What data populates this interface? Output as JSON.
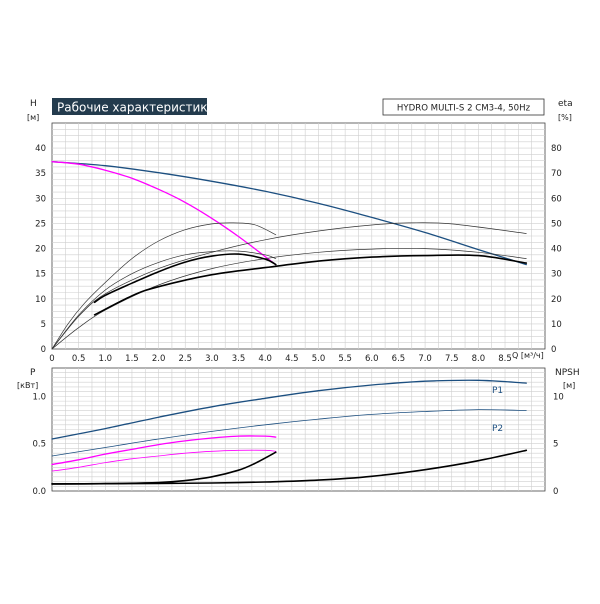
{
  "header": {
    "title": "Рабочие характеристики",
    "model": "HYDRO MULTI-S 2 CM3-4, 50Hz",
    "title_bg": "#233b4d"
  },
  "chart_data": [
    {
      "type": "line",
      "name": "head_efficiency",
      "left_axis": {
        "label": "H",
        "unit": "[м]",
        "ylim": [
          0,
          45
        ],
        "ticks": [
          "0",
          "5",
          "10",
          "15",
          "20",
          "25",
          "30",
          "35",
          "40"
        ]
      },
      "right_axis": {
        "label": "eta",
        "unit": "[%]",
        "ylim": [
          0,
          90
        ],
        "ticks": [
          "0",
          "10",
          "20",
          "30",
          "40",
          "50",
          "60",
          "70",
          "80"
        ]
      },
      "x_axis": {
        "label": "Q [м³/ч]",
        "xlim": [
          0,
          9.25
        ],
        "ticks": [
          "0",
          "0.5",
          "1.0",
          "1.5",
          "2.0",
          "2.5",
          "3.0",
          "3.5",
          "4.0",
          "4.5",
          "5.0",
          "5.5",
          "6.0",
          "6.5",
          "7.0",
          "7.5",
          "8.0",
          "8.5"
        ]
      },
      "grid": true,
      "colors": {
        "blue": "#1c4f80",
        "magenta": "#ff00ff",
        "black": "#000000",
        "thin": "#333333"
      },
      "series": [
        {
          "axis": "left",
          "color": "blue",
          "width": 1.3,
          "x": [
            0,
            1,
            2,
            3,
            4,
            5,
            6,
            7,
            8,
            8.9
          ],
          "y": [
            37.3,
            36.5,
            35.1,
            33.4,
            31.4,
            29.0,
            26.2,
            23.2,
            19.8,
            16.8
          ]
        },
        {
          "axis": "left",
          "color": "magenta",
          "width": 1.3,
          "x": [
            0,
            0.5,
            1,
            1.5,
            2,
            2.5,
            3,
            3.5,
            4,
            4.2
          ],
          "y": [
            37.3,
            36.8,
            35.6,
            34.0,
            31.8,
            29.2,
            26.0,
            22.4,
            18.4,
            16.8
          ]
        },
        {
          "axis": "right",
          "color": "thin",
          "width": 0.7,
          "x": [
            0,
            0.3,
            0.6,
            1.0,
            1.5,
            2.0,
            2.5,
            3.0,
            3.4,
            3.8,
            4.2
          ],
          "y": [
            0,
            10,
            18,
            26.5,
            36,
            43,
            47.5,
            49.8,
            50.2,
            49.5,
            45.5
          ]
        },
        {
          "axis": "right",
          "color": "thin",
          "width": 0.7,
          "x": [
            0,
            0.5,
            1,
            2,
            3,
            4,
            5,
            6,
            6.7,
            7.5,
            8.9
          ],
          "y": [
            0,
            13,
            22,
            32,
            38.5,
            43.5,
            47,
            49.4,
            50.2,
            49.8,
            46
          ]
        },
        {
          "axis": "right",
          "color": "thin",
          "width": 0.7,
          "x": [
            0,
            0.5,
            1,
            1.5,
            2,
            2.5,
            3,
            3.5,
            4,
            4.2
          ],
          "y": [
            0,
            13.5,
            23.5,
            30,
            34.5,
            37.5,
            38.8,
            39.0,
            37.5,
            36.0
          ]
        },
        {
          "axis": "right",
          "color": "thin",
          "width": 0.7,
          "x": [
            0,
            0.5,
            1,
            2,
            3,
            4,
            5,
            6,
            7,
            8,
            8.9
          ],
          "y": [
            0,
            8.5,
            15.5,
            25.5,
            32,
            36,
            38.5,
            39.8,
            40.0,
            38.5,
            36.0
          ]
        },
        {
          "axis": "left",
          "color": "black",
          "width": 1.6,
          "x": [
            0.8,
            1,
            1.5,
            2,
            2.5,
            3,
            3.5,
            4,
            4.2
          ],
          "y": [
            9.3,
            10.7,
            13.1,
            15.4,
            17.3,
            18.5,
            18.9,
            17.9,
            16.8
          ]
        },
        {
          "axis": "left",
          "color": "black",
          "width": 1.6,
          "x": [
            0.8,
            1.5,
            2,
            3,
            4,
            5,
            6,
            7,
            8,
            8.9
          ],
          "y": [
            6.8,
            10.6,
            12.4,
            14.8,
            16.2,
            17.5,
            18.3,
            18.6,
            18.6,
            17.1
          ]
        }
      ]
    },
    {
      "type": "line",
      "name": "power_npsh",
      "left_axis": {
        "label": "P",
        "unit": "[кВт]",
        "ylim": [
          0,
          1.3
        ],
        "ticks": [
          "0.0",
          "0.5",
          "1.0"
        ]
      },
      "right_axis": {
        "label": "NPSH",
        "unit": "[м]",
        "ylim": [
          0,
          13
        ],
        "ticks": [
          "0",
          "5",
          "10"
        ]
      },
      "x_axis": {
        "xlim": [
          0,
          9.25
        ]
      },
      "grid": true,
      "labels": [
        "P1",
        "P2"
      ],
      "series": [
        {
          "axis": "left",
          "color": "blue",
          "width": 1.3,
          "x": [
            0,
            1,
            2,
            3,
            4,
            5,
            6,
            7,
            8,
            8.9
          ],
          "y": [
            0.55,
            0.66,
            0.78,
            0.89,
            0.98,
            1.06,
            1.12,
            1.16,
            1.17,
            1.14
          ]
        },
        {
          "axis": "left",
          "color": "blue",
          "width": 0.8,
          "x": [
            0,
            1,
            2,
            3,
            4,
            5,
            6,
            7,
            8,
            8.9
          ],
          "y": [
            0.37,
            0.46,
            0.55,
            0.63,
            0.7,
            0.76,
            0.81,
            0.84,
            0.86,
            0.85
          ]
        },
        {
          "axis": "left",
          "color": "magenta",
          "width": 1.3,
          "x": [
            0,
            0.5,
            1,
            1.5,
            2,
            2.5,
            3,
            3.5,
            4,
            4.2
          ],
          "y": [
            0.28,
            0.33,
            0.39,
            0.44,
            0.49,
            0.53,
            0.56,
            0.58,
            0.58,
            0.57
          ]
        },
        {
          "axis": "left",
          "color": "magenta",
          "width": 0.8,
          "x": [
            0,
            0.5,
            1,
            1.5,
            2,
            2.5,
            3,
            3.5,
            4,
            4.2
          ],
          "y": [
            0.21,
            0.25,
            0.3,
            0.34,
            0.37,
            0.4,
            0.42,
            0.43,
            0.43,
            0.42
          ]
        },
        {
          "axis": "left",
          "color": "black",
          "width": 1.6,
          "x": [
            0,
            1,
            2,
            2.5,
            3,
            3.5,
            3.8,
            4.2
          ],
          "y": [
            0.075,
            0.078,
            0.09,
            0.11,
            0.15,
            0.22,
            0.29,
            0.41
          ]
        },
        {
          "axis": "left",
          "color": "black",
          "width": 1.6,
          "x": [
            0,
            1,
            2,
            3,
            4,
            5,
            6,
            7,
            8,
            8.9
          ],
          "y": [
            0.075,
            0.077,
            0.08,
            0.085,
            0.095,
            0.115,
            0.155,
            0.225,
            0.32,
            0.43
          ]
        }
      ]
    }
  ]
}
